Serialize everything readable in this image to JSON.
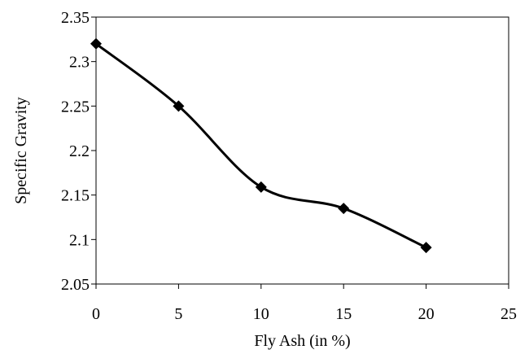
{
  "chart_data": {
    "type": "line",
    "title": "",
    "xlabel": "Fly Ash (in %)",
    "ylabel": "Specific Gravity",
    "xlim": [
      0,
      25
    ],
    "ylim": [
      2.05,
      2.35
    ],
    "x_ticks": [
      "0",
      "5",
      "10",
      "15",
      "20",
      "25"
    ],
    "y_ticks": [
      "2.05",
      "2.1",
      "2.15",
      "2.2",
      "2.25",
      "2.3",
      "2.35"
    ],
    "grid": false,
    "legend": "none",
    "smooth": true,
    "marker": "diamond",
    "line_color": "#000000",
    "series": [
      {
        "x": [
          0,
          5,
          10,
          15,
          20
        ],
        "values": [
          2.32,
          2.25,
          2.159,
          2.135,
          2.091
        ]
      }
    ]
  }
}
